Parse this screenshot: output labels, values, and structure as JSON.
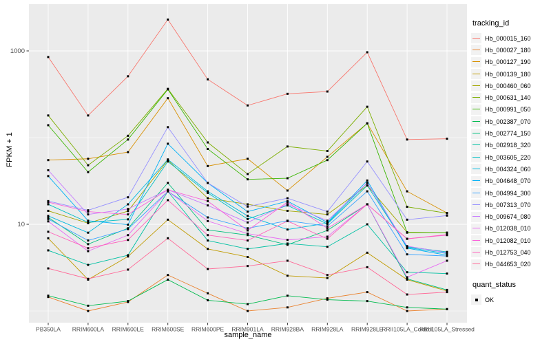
{
  "figure": {
    "background": "#FFFFFF",
    "panel_background": "#EBEBEB",
    "gridline_color": "#FFFFFF",
    "point_color": "#000000",
    "tick_label_color": "#4D4D4D",
    "tick_mark_color": "#333333"
  },
  "axes": {
    "x": {
      "title": "sample_name"
    },
    "y": {
      "title": "FPKM + 1",
      "tick_labels": [
        "1000",
        "10"
      ],
      "scale": "log10"
    }
  },
  "legend": {
    "tracking": {
      "title": "tracking_id"
    },
    "quant": {
      "title": "quant_status",
      "ok_label": "OK"
    }
  },
  "chart_data": {
    "type": "line",
    "xlabel": "sample_name",
    "ylabel": "FPKM + 1",
    "y_scale": "log10",
    "y_ticks": [
      1000,
      10
    ],
    "y_minor_ticks": [
      100,
      1
    ],
    "ylim": [
      1,
      2400
    ],
    "grid": true,
    "legend_position": "right",
    "point_shape": "filled-square",
    "categories": [
      "PB350LA",
      "RRIM600LA",
      "RRIM600LE",
      "RRIM600SE",
      "RRIM600PE",
      "RRIM901LA",
      "RRIM928BA",
      "RRIM928LA",
      "RRIM928LE",
      "RRII105LA_Control",
      "RRII105LA_Stressed"
    ],
    "series": [
      {
        "name": "Hb_000015_160",
        "color": "#F8766D",
        "values": [
          850,
          180,
          510,
          2300,
          470,
          235,
          320,
          340,
          965,
          95,
          97
        ]
      },
      {
        "name": "Hb_000027_180",
        "color": "#EA8331",
        "values": [
          1.45,
          1.0,
          1.27,
          2.6,
          1.6,
          1.0,
          1.1,
          1.4,
          1.65,
          1.0,
          1.05
        ]
      },
      {
        "name": "Hb_000127_190",
        "color": "#D89000",
        "values": [
          55,
          57,
          68,
          285,
          47,
          57,
          24.5,
          60,
          146,
          24,
          13.5
        ]
      },
      {
        "name": "Hb_000139_180",
        "color": "#C09B00",
        "values": [
          6.9,
          2.3,
          4.25,
          11.3,
          5.2,
          4.2,
          2.55,
          2.4,
          4.7,
          2.3,
          1.7
        ]
      },
      {
        "name": "Hb_000460_060",
        "color": "#A3A500",
        "values": [
          14.3,
          10.3,
          14.2,
          55,
          20,
          17,
          14.3,
          13,
          28,
          8.1,
          8.0
        ]
      },
      {
        "name": "Hb_000631_140",
        "color": "#7CAE00",
        "values": [
          180,
          48,
          105,
          365,
          88,
          38,
          79,
          70,
          227,
          15.9,
          13.4
        ]
      },
      {
        "name": "Hb_000991_050",
        "color": "#39B600",
        "values": [
          139,
          40,
          95,
          360,
          74,
          33,
          34,
          55,
          146,
          8.0,
          8.0
        ]
      },
      {
        "name": "Hb_002387_070",
        "color": "#00BB4E",
        "values": [
          1.5,
          1.15,
          1.3,
          2.3,
          1.33,
          1.2,
          1.5,
          1.35,
          1.3,
          1.1,
          1.05
        ]
      },
      {
        "name": "Hb_002774_150",
        "color": "#00BF7D",
        "values": [
          12,
          5.9,
          9.0,
          30,
          8.6,
          7.5,
          5.8,
          8.5,
          17,
          2.35,
          1.75
        ]
      },
      {
        "name": "Hb_002918_320",
        "color": "#00C1A3",
        "values": [
          5.0,
          3.4,
          4.4,
          24,
          6.5,
          5.2,
          6.0,
          5.5,
          10,
          2.8,
          2.7
        ]
      },
      {
        "name": "Hb_003605_220",
        "color": "#00BFC4",
        "values": [
          17,
          10.5,
          11.4,
          53,
          23,
          11.5,
          16.5,
          10.1,
          28,
          5.5,
          4.8
        ]
      },
      {
        "name": "Hb_004324_060",
        "color": "#00BAE0",
        "values": [
          12.5,
          8.0,
          17,
          56,
          24,
          12.5,
          8.7,
          10.3,
          30,
          5.4,
          4.6
        ]
      },
      {
        "name": "Hb_004648_070",
        "color": "#00B0F6",
        "values": [
          36,
          11,
          9.9,
          85,
          30,
          14,
          18.5,
          10.5,
          32,
          5.3,
          4.4
        ]
      },
      {
        "name": "Hb_004994_300",
        "color": "#35A2FF",
        "values": [
          11.5,
          6.5,
          8.8,
          24,
          12,
          9.0,
          11,
          9.5,
          24,
          4.5,
          4.3
        ]
      },
      {
        "name": "Hb_007313_070",
        "color": "#9590FF",
        "values": [
          18.5,
          14.5,
          20.5,
          132,
          30,
          16,
          20,
          14,
          53,
          11.3,
          12.6
        ]
      },
      {
        "name": "Hb_009674_080",
        "color": "#C77CFF",
        "values": [
          42,
          13,
          15,
          25,
          16.5,
          10.5,
          17,
          11,
          30,
          5.6,
          4.7
        ]
      },
      {
        "name": "Hb_012038_010",
        "color": "#E76BF3",
        "values": [
          10.8,
          4.9,
          7.5,
          24,
          10.9,
          7.8,
          6.6,
          7.2,
          17,
          2.45,
          3.8
        ]
      },
      {
        "name": "Hb_012082_010",
        "color": "#FA62DB",
        "values": [
          18,
          14,
          13,
          25,
          18.5,
          8.5,
          18,
          9.0,
          17,
          6.8,
          7.5
        ]
      },
      {
        "name": "Hb_012753_040",
        "color": "#FF62BC",
        "values": [
          8.2,
          5.3,
          6.6,
          19,
          7.5,
          6.5,
          10.9,
          6.8,
          17,
          6.8,
          7.6
        ]
      },
      {
        "name": "Hb_044653_020",
        "color": "#FF6A98",
        "values": [
          3.1,
          2.35,
          3.0,
          6.9,
          3.05,
          3.3,
          3.8,
          2.6,
          3.2,
          1.55,
          1.65
        ]
      }
    ]
  }
}
